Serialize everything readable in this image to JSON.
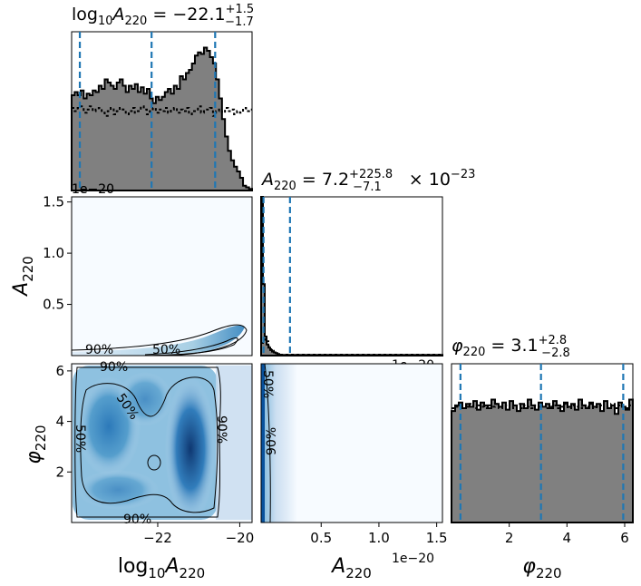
{
  "chart_data": [
    {
      "type": "histogram",
      "panel": "A_log",
      "title": {
        "main": "log",
        "sub10": "10",
        "var": "A",
        "subvar": "220",
        "eq": " = −22.1",
        "sup": "+1.5",
        "sub": "−1.7"
      },
      "xlim": [
        -24.1,
        -19.7
      ],
      "quantile_lines": [
        -23.9,
        -22.15,
        -20.6
      ],
      "posterior_steps": [
        0.6,
        0.62,
        0.6,
        0.63,
        0.58,
        0.61,
        0.6,
        0.63,
        0.62,
        0.66,
        0.64,
        0.7,
        0.68,
        0.66,
        0.64,
        0.68,
        0.7,
        0.66,
        0.62,
        0.66,
        0.64,
        0.67,
        0.62,
        0.65,
        0.61,
        0.64,
        0.58,
        0.55,
        0.59,
        0.57,
        0.59,
        0.62,
        0.64,
        0.61,
        0.66,
        0.64,
        0.72,
        0.7,
        0.74,
        0.76,
        0.8,
        0.85,
        0.87,
        0.86,
        0.9,
        0.88,
        0.84,
        0.8,
        0.7,
        0.58,
        0.45,
        0.34,
        0.25,
        0.19,
        0.15,
        0.12,
        0.08,
        0.03,
        0.02,
        0.01
      ],
      "prior_steps": [
        0.52,
        0.5,
        0.52,
        0.53,
        0.49,
        0.51,
        0.53,
        0.5,
        0.51,
        0.52,
        0.49,
        0.47,
        0.5,
        0.52,
        0.48,
        0.5,
        0.52,
        0.51,
        0.48,
        0.5,
        0.52,
        0.49,
        0.5,
        0.53,
        0.51,
        0.48,
        0.5,
        0.52,
        0.49,
        0.51,
        0.5,
        0.52,
        0.49,
        0.51,
        0.52,
        0.49,
        0.51,
        0.5,
        0.52,
        0.48,
        0.5,
        0.51,
        0.53,
        0.49,
        0.5,
        0.51,
        0.52,
        0.47,
        0.5,
        0.51,
        0.49,
        0.52,
        0.5,
        0.51,
        0.48,
        0.5,
        0.49,
        0.52,
        0.5,
        0.51
      ],
      "offset_text": "1e−20"
    },
    {
      "type": "histogram",
      "panel": "A",
      "title": {
        "var": "A",
        "subvar": "220",
        "eq": " = 7.2",
        "sup": "+225.8",
        "sub": "−7.1",
        "tail": " × 10",
        "exp": "−23"
      },
      "xlim": [
        -2e-22,
        1.55e-20
      ],
      "xticks": [
        "0.5",
        "1.0",
        "1.5"
      ],
      "xtick_values": [
        0.5,
        1.0,
        1.5
      ],
      "quantile_lines": [
        0.0007,
        0.23
      ],
      "posterior_first_bins": [
        1.0,
        0.45,
        0.12,
        0.07,
        0.05,
        0.035,
        0.025,
        0.02,
        0.015,
        0.01
      ],
      "prior_first_bins": [
        0.08,
        0.1,
        0.12,
        0.09,
        0.06,
        0.04,
        0.03,
        0.02,
        0.015,
        0.01
      ],
      "offset_text": "1e−20"
    },
    {
      "type": "histogram",
      "panel": "phi",
      "title": {
        "var": "φ",
        "subvar": "220",
        "eq": " = 3.1",
        "sup": "+2.8",
        "sub": "−2.8"
      },
      "xlim": [
        0,
        6.283
      ],
      "xticks": [
        "2",
        "4",
        "6"
      ],
      "xtick_values": [
        2,
        4,
        6
      ],
      "quantile_lines": [
        0.31,
        3.1,
        5.95
      ],
      "posterior_steps": [
        0.78,
        0.82,
        0.84,
        0.8,
        0.83,
        0.81,
        0.85,
        0.79,
        0.84,
        0.82,
        0.8,
        0.86,
        0.83,
        0.81,
        0.84,
        0.79,
        0.85,
        0.82,
        0.78,
        0.83,
        0.8,
        0.86,
        0.82,
        0.79,
        0.84,
        0.81,
        0.83,
        0.8,
        0.85,
        0.82,
        0.78,
        0.84,
        0.81,
        0.83,
        0.79,
        0.86,
        0.82,
        0.8,
        0.84,
        0.81,
        0.83,
        0.78,
        0.85,
        0.8,
        0.82,
        0.76,
        0.84,
        0.81,
        0.79,
        0.86
      ],
      "prior_steps": [
        0.8,
        0.81,
        0.82,
        0.8,
        0.81,
        0.83,
        0.8,
        0.82,
        0.81,
        0.8,
        0.82,
        0.81,
        0.83,
        0.8,
        0.81,
        0.82,
        0.8,
        0.81,
        0.83,
        0.8,
        0.82,
        0.81,
        0.8,
        0.82,
        0.81,
        0.83,
        0.8,
        0.81,
        0.82,
        0.8,
        0.81,
        0.83,
        0.8,
        0.82,
        0.81,
        0.8,
        0.82,
        0.81,
        0.83,
        0.8,
        0.81,
        0.82,
        0.8,
        0.81,
        0.83,
        0.8,
        0.82,
        0.81,
        0.8,
        0.82
      ]
    },
    {
      "type": "contour",
      "panel": "logA_vs_A",
      "ylabel": {
        "var": "A",
        "sub": "220"
      },
      "yticks": [
        "0.5",
        "1.0",
        "1.5"
      ],
      "ytick_values": [
        0.5,
        1.0,
        1.5
      ],
      "ylim": [
        0,
        1.55
      ],
      "contour_labels": [
        "90%",
        "50%"
      ],
      "offset_text": "1e−20"
    },
    {
      "type": "contour",
      "panel": "logA_vs_phi",
      "ylabel": {
        "var": "φ",
        "sub": "220"
      },
      "xlabel": {
        "main": "log",
        "sub10": "10",
        "var": "A",
        "subvar": "220"
      },
      "xticks": [
        "−22",
        "−20"
      ],
      "xtick_values": [
        -22,
        -20
      ],
      "yticks": [
        "2",
        "4",
        "6"
      ],
      "ytick_values": [
        2,
        4,
        6
      ],
      "xlim": [
        -24.1,
        -19.7
      ],
      "ylim": [
        0,
        6.283
      ],
      "contour_labels": [
        "90%",
        "50%",
        "90%",
        "90%",
        "50%"
      ]
    },
    {
      "type": "contour",
      "panel": "A_vs_phi",
      "xlabel": {
        "var": "A",
        "sub": "220"
      },
      "xticks": [
        "0.5",
        "1.0",
        "1.5"
      ],
      "xtick_values": [
        0.5,
        1.0,
        1.5
      ],
      "contour_labels": [
        "90%",
        "50%"
      ],
      "offset_text": "1e−20"
    }
  ],
  "phi_xlabel": {
    "var": "φ",
    "sub": "220"
  },
  "colors": {
    "hist_fill": "#808080",
    "hist_edge": "#000000",
    "quantile": "#1f77b4",
    "density_light": "#f7fbff",
    "density_dark": "#08306b"
  }
}
